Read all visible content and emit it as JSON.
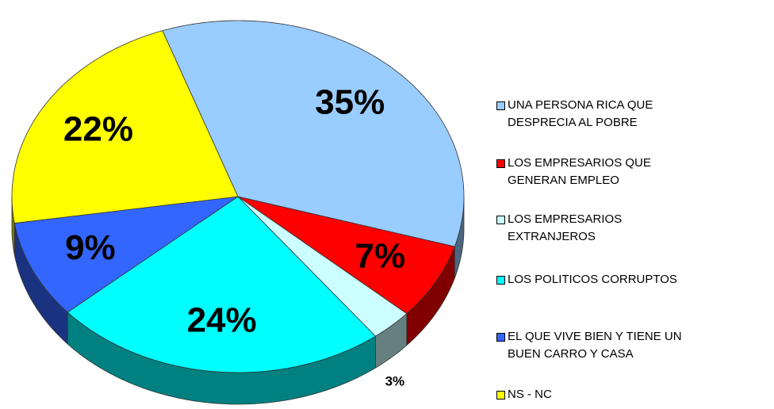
{
  "chart_data": {
    "type": "pie",
    "categories": [
      "UNA PERSONA RICA QUE\nDESPRECIA AL POBRE",
      "LOS EMPRESARIOS QUE\nGENERAN EMPLEO",
      "LOS EMPRESARIOS\nEXTRANJEROS",
      "LOS POLITICOS CORRUPTOS",
      "EL QUE VIVE BIEN Y TIENE  UN\nBUEN CARRO Y CASA",
      "NS - NC"
    ],
    "values": [
      35,
      7,
      3,
      24,
      9,
      22
    ],
    "value_labels": [
      "35%",
      "7%",
      "3%",
      "24%",
      "9%",
      "22%"
    ],
    "colors": [
      "#99ccff",
      "#ff0000",
      "#ccffff",
      "#00ffff",
      "#3366ff",
      "#ffff00"
    ],
    "legend": "right"
  }
}
